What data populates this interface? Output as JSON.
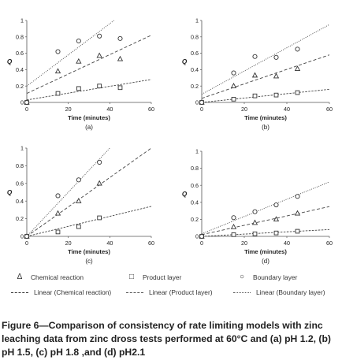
{
  "caption": "Figure 6—Comparison of consistency of rate limiting models with zinc leaching data from zinc dross tests performed at 60°C and (a) pH 1.2, (b) pH 1.5, (c) pH 1.8 ,and (d) pH2.1",
  "legend": {
    "markers": [
      {
        "symbol": "Δ",
        "label": "Chemical reaction"
      },
      {
        "symbol": "□",
        "label": "Product layer"
      },
      {
        "symbol": "○",
        "label": "Boundary layer"
      }
    ],
    "lines": [
      {
        "label": "Linear (Chemical reaction)"
      },
      {
        "label": "Linear (Product layer)"
      },
      {
        "label": "Linear (Boundary layer)"
      }
    ]
  },
  "chart_data": [
    {
      "type": "scatter",
      "panel_label": "(a)",
      "xlabel": "Time (minutes)",
      "ylabel": "Q",
      "xlim": [
        0,
        60
      ],
      "ylim": [
        0,
        1
      ],
      "xticks": [
        "0",
        "20",
        "40",
        "60"
      ],
      "yticks": [
        "0",
        "0.2",
        "0.4",
        "0.6",
        "0.8",
        "1"
      ],
      "series": [
        {
          "name": "Chemical reaction",
          "marker": "triangle",
          "x": [
            0,
            15,
            25,
            35,
            45
          ],
          "y": [
            0,
            0.38,
            0.5,
            0.57,
            0.53
          ]
        },
        {
          "name": "Product layer",
          "marker": "square",
          "x": [
            0,
            15,
            25,
            35,
            45
          ],
          "y": [
            0,
            0.11,
            0.17,
            0.2,
            0.18
          ]
        },
        {
          "name": "Boundary layer",
          "marker": "circle",
          "x": [
            0,
            15,
            25,
            35,
            45
          ],
          "y": [
            0,
            0.62,
            0.75,
            0.81,
            0.78
          ]
        }
      ],
      "trendlines": [
        {
          "name": "Linear (Chemical reaction)",
          "style": "dashed",
          "x": [
            0,
            60
          ],
          "y": [
            0.11,
            0.82
          ]
        },
        {
          "name": "Linear (Product layer)",
          "style": "dashed-fine",
          "x": [
            0,
            60
          ],
          "y": [
            0.03,
            0.28
          ]
        },
        {
          "name": "Linear (Boundary layer)",
          "style": "dotted",
          "x": [
            0,
            42
          ],
          "y": [
            0.2,
            1
          ]
        }
      ]
    },
    {
      "type": "scatter",
      "panel_label": "(b)",
      "xlabel": "Time (minutes)",
      "ylabel": "Q",
      "xlim": [
        0,
        60
      ],
      "ylim": [
        0,
        1
      ],
      "xticks": [
        "0",
        "20",
        "40",
        "60"
      ],
      "yticks": [
        "0",
        "0.2",
        "0.4",
        "0.6",
        "0.8",
        "1"
      ],
      "series": [
        {
          "name": "Chemical reaction",
          "marker": "triangle",
          "x": [
            0,
            15,
            25,
            35,
            45
          ],
          "y": [
            0,
            0.2,
            0.33,
            0.32,
            0.41
          ]
        },
        {
          "name": "Product layer",
          "marker": "square",
          "x": [
            0,
            15,
            25,
            35,
            45
          ],
          "y": [
            0,
            0.04,
            0.08,
            0.09,
            0.12
          ]
        },
        {
          "name": "Boundary layer",
          "marker": "circle",
          "x": [
            0,
            15,
            25,
            35,
            45
          ],
          "y": [
            0,
            0.36,
            0.56,
            0.55,
            0.65
          ]
        }
      ],
      "trendlines": [
        {
          "name": "Linear (Chemical reaction)",
          "style": "dashed",
          "x": [
            0,
            60
          ],
          "y": [
            0.05,
            0.58
          ]
        },
        {
          "name": "Linear (Product layer)",
          "style": "dashed-fine",
          "x": [
            0,
            60
          ],
          "y": [
            0.0,
            0.16
          ]
        },
        {
          "name": "Linear (Boundary layer)",
          "style": "dotted",
          "x": [
            0,
            60
          ],
          "y": [
            0.1,
            0.95
          ]
        }
      ]
    },
    {
      "type": "scatter",
      "panel_label": "(c)",
      "xlabel": "Time (minutes)",
      "ylabel": "Q",
      "xlim": [
        0,
        60
      ],
      "ylim": [
        0,
        1
      ],
      "xticks": [
        "0",
        "20",
        "40",
        "60"
      ],
      "yticks": [
        "0",
        "0.2",
        "0.4",
        "0.6",
        "0.8",
        "1"
      ],
      "series": [
        {
          "name": "Chemical reaction",
          "marker": "triangle",
          "x": [
            0,
            15,
            25,
            35
          ],
          "y": [
            0,
            0.26,
            0.4,
            0.6
          ]
        },
        {
          "name": "Product layer",
          "marker": "square",
          "x": [
            0,
            15,
            25,
            35
          ],
          "y": [
            0,
            0.05,
            0.11,
            0.21
          ]
        },
        {
          "name": "Boundary layer",
          "marker": "circle",
          "x": [
            0,
            15,
            25,
            35
          ],
          "y": [
            0,
            0.46,
            0.64,
            0.84
          ]
        }
      ],
      "trendlines": [
        {
          "name": "Linear (Chemical reaction)",
          "style": "dashed",
          "x": [
            0,
            60
          ],
          "y": [
            0,
            1
          ]
        },
        {
          "name": "Linear (Product layer)",
          "style": "dashed-fine",
          "x": [
            0,
            60
          ],
          "y": [
            0,
            0.34
          ]
        },
        {
          "name": "Linear (Boundary layer)",
          "style": "dotted",
          "x": [
            0,
            40
          ],
          "y": [
            0,
            1
          ]
        }
      ]
    },
    {
      "type": "scatter",
      "panel_label": "(d)",
      "xlabel": "Time (minutes)",
      "ylabel": "Q",
      "xlim": [
        0,
        60
      ],
      "ylim": [
        0,
        1
      ],
      "xticks": [
        "0",
        "20",
        "40",
        "60"
      ],
      "yticks": [
        "0",
        "0.2",
        "0.4",
        "0.6",
        "0.8",
        "1"
      ],
      "series": [
        {
          "name": "Chemical reaction",
          "marker": "triangle",
          "x": [
            0,
            15,
            25,
            35,
            45
          ],
          "y": [
            0,
            0.11,
            0.16,
            0.2,
            0.27
          ]
        },
        {
          "name": "Product layer",
          "marker": "square",
          "x": [
            0,
            15,
            25,
            35,
            45
          ],
          "y": [
            0,
            0.02,
            0.03,
            0.04,
            0.06
          ]
        },
        {
          "name": "Boundary layer",
          "marker": "circle",
          "x": [
            0,
            15,
            25,
            35,
            45
          ],
          "y": [
            0,
            0.22,
            0.29,
            0.37,
            0.47
          ]
        }
      ],
      "trendlines": [
        {
          "name": "Linear (Chemical reaction)",
          "style": "dashed",
          "x": [
            0,
            60
          ],
          "y": [
            0.02,
            0.35
          ]
        },
        {
          "name": "Linear (Product layer)",
          "style": "dashed-fine",
          "x": [
            0,
            60
          ],
          "y": [
            0.0,
            0.08
          ]
        },
        {
          "name": "Linear (Boundary layer)",
          "style": "dotted",
          "x": [
            0,
            60
          ],
          "y": [
            0.03,
            0.64
          ]
        }
      ]
    }
  ]
}
